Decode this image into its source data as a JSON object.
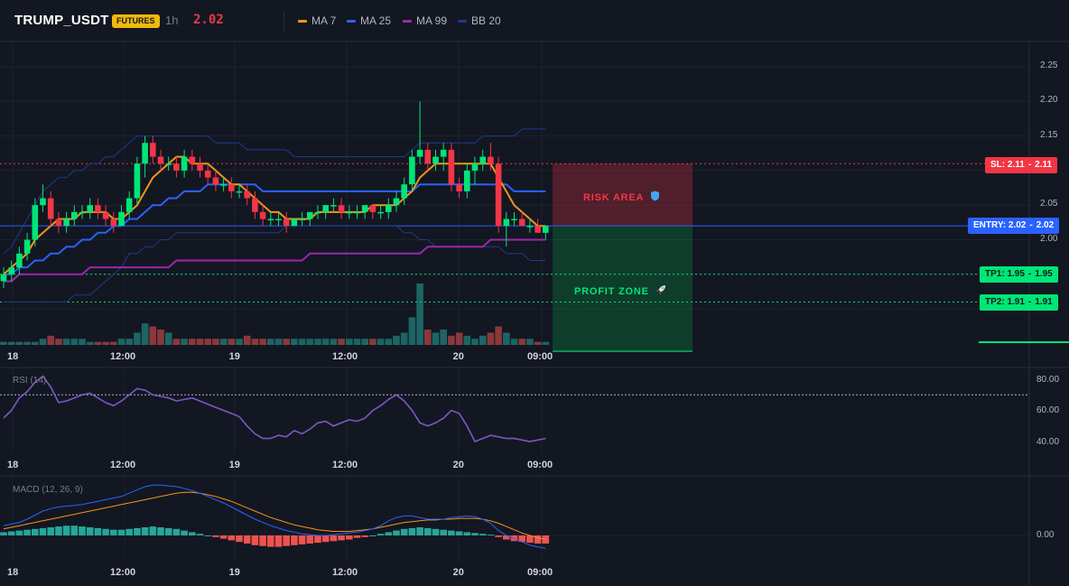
{
  "header": {
    "symbol": "TRUMP_USDT",
    "market_badge": "FUTURES",
    "timeframe": "1h",
    "last_price": "2.02",
    "indicators": [
      {
        "label": "MA 7",
        "color": "#f7931a"
      },
      {
        "label": "MA 25",
        "color": "#2962ff"
      },
      {
        "label": "MA 99",
        "color": "#9c27b0"
      },
      {
        "label": "BB 20",
        "color": "#1e3a8a"
      }
    ]
  },
  "main_chart": {
    "y_ticks": [
      "2.25",
      "2.20",
      "2.15",
      "2.10",
      "2.05",
      "2.00",
      "1.95",
      "1.90"
    ],
    "y_tick_values": [
      2.25,
      2.2,
      2.15,
      2.1,
      2.05,
      2.0,
      1.95,
      1.9
    ],
    "x_ticks": [
      "18",
      "12:00",
      "19",
      "12:00",
      "20",
      "09:00"
    ],
    "levels": {
      "stop_loss": {
        "label": "SL: 2.11",
        "value_label": "2.11",
        "value": 2.11,
        "color": "#f23645"
      },
      "entry": {
        "label": "ENTRY: 2.02",
        "value_label": "2.02",
        "value": 2.02,
        "color": "#2962ff"
      },
      "tp1": {
        "label": "TP1: 1.95",
        "value_label": "1.95",
        "value": 1.95,
        "color": "#00e676"
      },
      "tp2": {
        "label": "TP2: 1.91",
        "value_label": "1.91",
        "value": 1.91,
        "color": "#00e676"
      }
    },
    "risk_zone_label": "RISK AREA",
    "profit_zone_label": "PROFIT ZONE",
    "risk_icon": "shield-icon",
    "profit_icon": "rocket-icon"
  },
  "rsi_pane": {
    "title": "RSI (14)",
    "y_ticks": [
      "80.00",
      "60.00",
      "40.00"
    ],
    "x_ticks": [
      "18",
      "12:00",
      "19",
      "12:00",
      "20",
      "09:00"
    ]
  },
  "macd_pane": {
    "title": "MACD (12, 26, 9)",
    "y_ticks": [
      "0.00"
    ],
    "x_ticks": [
      "18",
      "12:00",
      "19",
      "12:00",
      "20",
      "09:00"
    ]
  },
  "chart_data": {
    "type": "candlestick",
    "symbol": "TRUMP_USDT",
    "interval": "1h",
    "ylim": [
      1.88,
      2.28
    ],
    "candles": [
      [
        1.94,
        1.96,
        1.93,
        1.95
      ],
      [
        1.95,
        1.97,
        1.94,
        1.96
      ],
      [
        1.96,
        1.99,
        1.95,
        1.98
      ],
      [
        1.98,
        2.01,
        1.97,
        2.0
      ],
      [
        2.0,
        2.06,
        1.99,
        2.05
      ],
      [
        2.05,
        2.08,
        2.04,
        2.06
      ],
      [
        2.06,
        2.07,
        2.02,
        2.03
      ],
      [
        2.03,
        2.04,
        2.01,
        2.02
      ],
      [
        2.02,
        2.04,
        2.01,
        2.03
      ],
      [
        2.03,
        2.05,
        2.02,
        2.04
      ],
      [
        2.04,
        2.05,
        2.03,
        2.04
      ],
      [
        2.04,
        2.06,
        2.03,
        2.05
      ],
      [
        2.05,
        2.06,
        2.03,
        2.04
      ],
      [
        2.04,
        2.05,
        2.02,
        2.03
      ],
      [
        2.03,
        2.04,
        2.01,
        2.02
      ],
      [
        2.02,
        2.05,
        2.02,
        2.04
      ],
      [
        2.04,
        2.07,
        2.03,
        2.06
      ],
      [
        2.06,
        2.12,
        2.05,
        2.11
      ],
      [
        2.11,
        2.15,
        2.09,
        2.14
      ],
      [
        2.14,
        2.15,
        2.11,
        2.12
      ],
      [
        2.12,
        2.13,
        2.1,
        2.11
      ],
      [
        2.11,
        2.12,
        2.1,
        2.11
      ],
      [
        2.11,
        2.12,
        2.09,
        2.1
      ],
      [
        2.1,
        2.13,
        2.09,
        2.12
      ],
      [
        2.12,
        2.13,
        2.1,
        2.11
      ],
      [
        2.11,
        2.12,
        2.09,
        2.1
      ],
      [
        2.1,
        2.11,
        2.08,
        2.09
      ],
      [
        2.09,
        2.1,
        2.07,
        2.08
      ],
      [
        2.08,
        2.09,
        2.07,
        2.08
      ],
      [
        2.08,
        2.09,
        2.06,
        2.07
      ],
      [
        2.07,
        2.08,
        2.06,
        2.07
      ],
      [
        2.07,
        2.08,
        2.05,
        2.06
      ],
      [
        2.06,
        2.07,
        2.03,
        2.04
      ],
      [
        2.04,
        2.05,
        2.02,
        2.03
      ],
      [
        2.03,
        2.04,
        2.02,
        2.03
      ],
      [
        2.03,
        2.04,
        2.02,
        2.03
      ],
      [
        2.03,
        2.04,
        2.01,
        2.02
      ],
      [
        2.02,
        2.03,
        2.02,
        2.03
      ],
      [
        2.03,
        2.04,
        2.02,
        2.03
      ],
      [
        2.03,
        2.04,
        2.02,
        2.04
      ],
      [
        2.04,
        2.05,
        2.03,
        2.04
      ],
      [
        2.04,
        2.05,
        2.03,
        2.05
      ],
      [
        2.05,
        2.06,
        2.04,
        2.05
      ],
      [
        2.05,
        2.06,
        2.03,
        2.04
      ],
      [
        2.04,
        2.05,
        2.03,
        2.04
      ],
      [
        2.04,
        2.05,
        2.03,
        2.04
      ],
      [
        2.04,
        2.05,
        2.03,
        2.05
      ],
      [
        2.05,
        2.05,
        2.03,
        2.04
      ],
      [
        2.04,
        2.05,
        2.03,
        2.04
      ],
      [
        2.04,
        2.06,
        2.03,
        2.05
      ],
      [
        2.05,
        2.07,
        2.04,
        2.06
      ],
      [
        2.06,
        2.09,
        2.05,
        2.08
      ],
      [
        2.08,
        2.13,
        2.07,
        2.12
      ],
      [
        2.12,
        2.2,
        2.11,
        2.13
      ],
      [
        2.13,
        2.14,
        2.1,
        2.11
      ],
      [
        2.11,
        2.13,
        2.1,
        2.12
      ],
      [
        2.12,
        2.14,
        2.1,
        2.13
      ],
      [
        2.13,
        2.14,
        2.07,
        2.08
      ],
      [
        2.08,
        2.09,
        2.06,
        2.07
      ],
      [
        2.07,
        2.11,
        2.06,
        2.1
      ],
      [
        2.1,
        2.12,
        2.08,
        2.11
      ],
      [
        2.11,
        2.13,
        2.1,
        2.12
      ],
      [
        2.12,
        2.14,
        2.1,
        2.11
      ],
      [
        2.11,
        2.12,
        2.01,
        2.02
      ],
      [
        2.02,
        2.04,
        1.99,
        2.03
      ],
      [
        2.03,
        2.04,
        2.02,
        2.03
      ],
      [
        2.03,
        2.04,
        2.02,
        2.02
      ],
      [
        2.02,
        2.03,
        2.01,
        2.02
      ],
      [
        2.02,
        2.03,
        2.01,
        2.01
      ],
      [
        2.01,
        2.02,
        2.0,
        2.02
      ]
    ],
    "volume": [
      1,
      1,
      1,
      1,
      1,
      2,
      3,
      2,
      2,
      2,
      2,
      1,
      1,
      1,
      1,
      2,
      2,
      4,
      7,
      6,
      5,
      4,
      2,
      2,
      2,
      2,
      2,
      2,
      2,
      2,
      2,
      3,
      2,
      2,
      2,
      2,
      2,
      2,
      2,
      2,
      2,
      2,
      2,
      2,
      2,
      2,
      2,
      2,
      2,
      2,
      3,
      4,
      9,
      20,
      5,
      4,
      5,
      3,
      4,
      3,
      2,
      3,
      4,
      6,
      4,
      2,
      2,
      2,
      1,
      1
    ],
    "ma7": [
      1.95,
      1.96,
      1.97,
      1.98,
      2.0,
      2.01,
      2.02,
      2.03,
      2.03,
      2.03,
      2.04,
      2.04,
      2.04,
      2.04,
      2.03,
      2.03,
      2.04,
      2.05,
      2.07,
      2.09,
      2.1,
      2.11,
      2.12,
      2.12,
      2.11,
      2.11,
      2.11,
      2.1,
      2.09,
      2.08,
      2.08,
      2.07,
      2.06,
      2.05,
      2.04,
      2.04,
      2.03,
      2.03,
      2.03,
      2.03,
      2.04,
      2.04,
      2.04,
      2.04,
      2.04,
      2.04,
      2.04,
      2.05,
      2.05,
      2.05,
      2.05,
      2.06,
      2.07,
      2.09,
      2.1,
      2.11,
      2.11,
      2.11,
      2.11,
      2.11,
      2.11,
      2.11,
      2.11,
      2.09,
      2.07,
      2.05,
      2.04,
      2.03,
      2.02,
      2.02
    ],
    "ma25": [
      1.95,
      1.95,
      1.96,
      1.96,
      1.97,
      1.97,
      1.98,
      1.98,
      1.99,
      1.99,
      2.0,
      2.0,
      2.01,
      2.01,
      2.02,
      2.02,
      2.03,
      2.03,
      2.04,
      2.05,
      2.05,
      2.06,
      2.06,
      2.07,
      2.07,
      2.07,
      2.08,
      2.08,
      2.08,
      2.08,
      2.08,
      2.08,
      2.08,
      2.07,
      2.07,
      2.07,
      2.07,
      2.07,
      2.07,
      2.07,
      2.07,
      2.07,
      2.07,
      2.07,
      2.07,
      2.07,
      2.07,
      2.07,
      2.07,
      2.07,
      2.07,
      2.07,
      2.07,
      2.08,
      2.08,
      2.08,
      2.08,
      2.08,
      2.08,
      2.08,
      2.08,
      2.08,
      2.08,
      2.08,
      2.08,
      2.07,
      2.07,
      2.07,
      2.07,
      2.07
    ],
    "ma99": [
      1.94,
      1.94,
      1.95,
      1.95,
      1.95,
      1.95,
      1.95,
      1.95,
      1.95,
      1.95,
      1.95,
      1.96,
      1.96,
      1.96,
      1.96,
      1.96,
      1.96,
      1.96,
      1.96,
      1.96,
      1.96,
      1.96,
      1.97,
      1.97,
      1.97,
      1.97,
      1.97,
      1.97,
      1.97,
      1.97,
      1.97,
      1.97,
      1.97,
      1.97,
      1.97,
      1.97,
      1.97,
      1.97,
      1.97,
      1.98,
      1.98,
      1.98,
      1.98,
      1.98,
      1.98,
      1.98,
      1.98,
      1.98,
      1.98,
      1.98,
      1.98,
      1.98,
      1.98,
      1.98,
      1.99,
      1.99,
      1.99,
      1.99,
      1.99,
      1.99,
      1.99,
      1.99,
      2.0,
      2.0,
      2.0,
      2.0,
      2.0,
      2.0,
      2.0,
      2.0
    ],
    "bb_upper": [
      1.98,
      1.99,
      2.01,
      2.03,
      2.05,
      2.07,
      2.08,
      2.09,
      2.09,
      2.1,
      2.1,
      2.11,
      2.11,
      2.12,
      2.12,
      2.13,
      2.14,
      2.15,
      2.15,
      2.15,
      2.15,
      2.15,
      2.15,
      2.15,
      2.15,
      2.15,
      2.15,
      2.14,
      2.14,
      2.14,
      2.14,
      2.13,
      2.13,
      2.13,
      2.13,
      2.13,
      2.13,
      2.12,
      2.12,
      2.12,
      2.12,
      2.12,
      2.12,
      2.12,
      2.12,
      2.12,
      2.12,
      2.12,
      2.12,
      2.12,
      2.12,
      2.12,
      2.13,
      2.14,
      2.14,
      2.14,
      2.14,
      2.14,
      2.14,
      2.14,
      2.14,
      2.15,
      2.15,
      2.15,
      2.15,
      2.15,
      2.16,
      2.16,
      2.16,
      2.16
    ],
    "bb_lower": [
      1.91,
      1.91,
      1.91,
      1.91,
      1.91,
      1.91,
      1.91,
      1.91,
      1.91,
      1.92,
      1.92,
      1.92,
      1.93,
      1.94,
      1.95,
      1.96,
      1.98,
      1.98,
      1.99,
      1.99,
      2.0,
      2.0,
      2.01,
      2.01,
      2.01,
      2.01,
      2.01,
      2.01,
      2.01,
      2.01,
      2.01,
      2.01,
      2.01,
      2.01,
      2.01,
      2.01,
      2.02,
      2.02,
      2.02,
      2.02,
      2.02,
      2.02,
      2.02,
      2.02,
      2.02,
      2.02,
      2.02,
      2.02,
      2.02,
      2.02,
      2.02,
      2.01,
      2.01,
      2.0,
      2.0,
      1.99,
      1.99,
      1.99,
      1.99,
      1.99,
      1.99,
      1.99,
      1.99,
      1.99,
      1.98,
      1.98,
      1.98,
      1.97,
      1.97,
      1.97
    ],
    "rsi": [
      55,
      60,
      68,
      72,
      78,
      82,
      75,
      65,
      66,
      68,
      70,
      71,
      68,
      65,
      63,
      66,
      70,
      74,
      73,
      70,
      69,
      68,
      66,
      67,
      68,
      66,
      64,
      62,
      60,
      58,
      56,
      50,
      45,
      42,
      42,
      44,
      43,
      47,
      45,
      48,
      52,
      53,
      50,
      52,
      54,
      53,
      55,
      60,
      63,
      67,
      70,
      66,
      60,
      52,
      50,
      52,
      55,
      60,
      58,
      50,
      40,
      42,
      44,
      43,
      42,
      42,
      41,
      40,
      41,
      42
    ],
    "rsi_ylim": [
      30,
      90
    ],
    "rsi_level": 70,
    "macd_hist": [
      0.004,
      0.005,
      0.006,
      0.007,
      0.008,
      0.009,
      0.01,
      0.011,
      0.012,
      0.012,
      0.011,
      0.01,
      0.009,
      0.008,
      0.007,
      0.007,
      0.008,
      0.009,
      0.01,
      0.011,
      0.01,
      0.009,
      0.008,
      0.006,
      0.004,
      0.002,
      0.0,
      -0.002,
      -0.004,
      -0.006,
      -0.008,
      -0.01,
      -0.012,
      -0.013,
      -0.014,
      -0.014,
      -0.013,
      -0.012,
      -0.011,
      -0.01,
      -0.009,
      -0.008,
      -0.007,
      -0.006,
      -0.005,
      -0.003,
      -0.002,
      0.0,
      0.002,
      0.004,
      0.006,
      0.008,
      0.009,
      0.01,
      0.009,
      0.008,
      0.007,
      0.006,
      0.005,
      0.004,
      0.003,
      0.002,
      0.001,
      -0.002,
      -0.005,
      -0.007,
      -0.008,
      -0.009,
      -0.01,
      -0.01
    ],
    "macd_line": [
      0.012,
      0.014,
      0.016,
      0.02,
      0.025,
      0.03,
      0.033,
      0.035,
      0.036,
      0.037,
      0.038,
      0.04,
      0.042,
      0.044,
      0.046,
      0.048,
      0.052,
      0.056,
      0.06,
      0.062,
      0.062,
      0.061,
      0.06,
      0.058,
      0.055,
      0.052,
      0.048,
      0.044,
      0.04,
      0.035,
      0.03,
      0.025,
      0.02,
      0.016,
      0.012,
      0.009,
      0.006,
      0.004,
      0.002,
      0.001,
      0.0,
      0.0,
      0.001,
      0.002,
      0.003,
      0.004,
      0.006,
      0.008,
      0.012,
      0.018,
      0.022,
      0.024,
      0.024,
      0.022,
      0.02,
      0.02,
      0.02,
      0.022,
      0.023,
      0.024,
      0.023,
      0.02,
      0.015,
      0.006,
      0.0,
      -0.004,
      -0.008,
      -0.012,
      -0.014,
      -0.016
    ],
    "macd_signal": [
      0.008,
      0.01,
      0.012,
      0.014,
      0.016,
      0.018,
      0.02,
      0.022,
      0.024,
      0.026,
      0.028,
      0.03,
      0.032,
      0.034,
      0.036,
      0.038,
      0.04,
      0.042,
      0.044,
      0.046,
      0.048,
      0.05,
      0.052,
      0.053,
      0.053,
      0.052,
      0.05,
      0.048,
      0.045,
      0.042,
      0.038,
      0.034,
      0.03,
      0.026,
      0.022,
      0.019,
      0.016,
      0.013,
      0.011,
      0.009,
      0.007,
      0.006,
      0.005,
      0.005,
      0.005,
      0.006,
      0.007,
      0.008,
      0.01,
      0.012,
      0.014,
      0.016,
      0.017,
      0.018,
      0.019,
      0.019,
      0.02,
      0.02,
      0.021,
      0.021,
      0.021,
      0.02,
      0.018,
      0.015,
      0.011,
      0.007,
      0.003,
      0.0,
      -0.003,
      -0.005
    ],
    "macd_ylim": [
      -0.025,
      0.07
    ]
  }
}
